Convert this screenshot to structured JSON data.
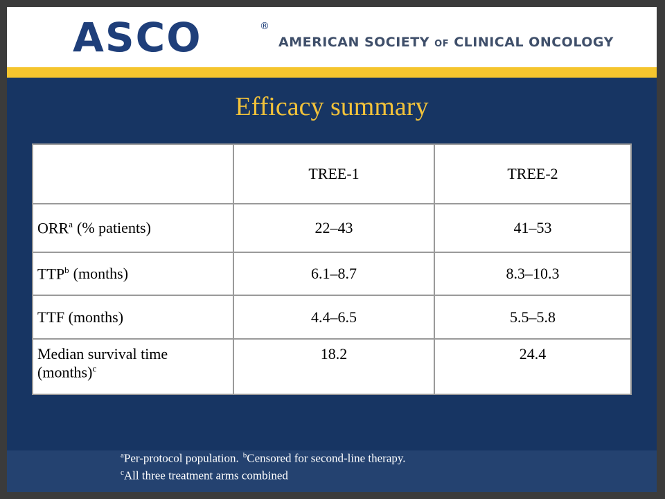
{
  "header": {
    "logo": "ASCO",
    "registered": "®",
    "org_name_1": "AMERICAN SOCIETY",
    "org_name_of": "OF",
    "org_name_2": "CLINICAL ONCOLOGY"
  },
  "title": "Efficacy summary",
  "table": {
    "columns": [
      "TREE-1",
      "TREE-2"
    ],
    "rows": [
      {
        "label": "ORR",
        "sup": "a",
        "suffix": "(% patients)",
        "cells": [
          "22–43",
          "41–53"
        ]
      },
      {
        "label": "TTP",
        "sup": "b",
        "suffix": "(months)",
        "cells": [
          "6.1–8.7",
          "8.3–10.3"
        ]
      },
      {
        "label": "TTF (months)",
        "cells": [
          "4.4–6.5",
          "5.5–5.8"
        ]
      },
      {
        "label": "Median survival time (months)",
        "sup": "c",
        "cells": [
          "18.2",
          "24.4"
        ]
      }
    ]
  },
  "footnotes": [
    {
      "sup": "a",
      "text": "Per-protocol population."
    },
    {
      "sup": "b",
      "text": "Censored for second-line therapy."
    },
    {
      "sup": "c",
      "text": "All three treatment arms combined"
    }
  ]
}
